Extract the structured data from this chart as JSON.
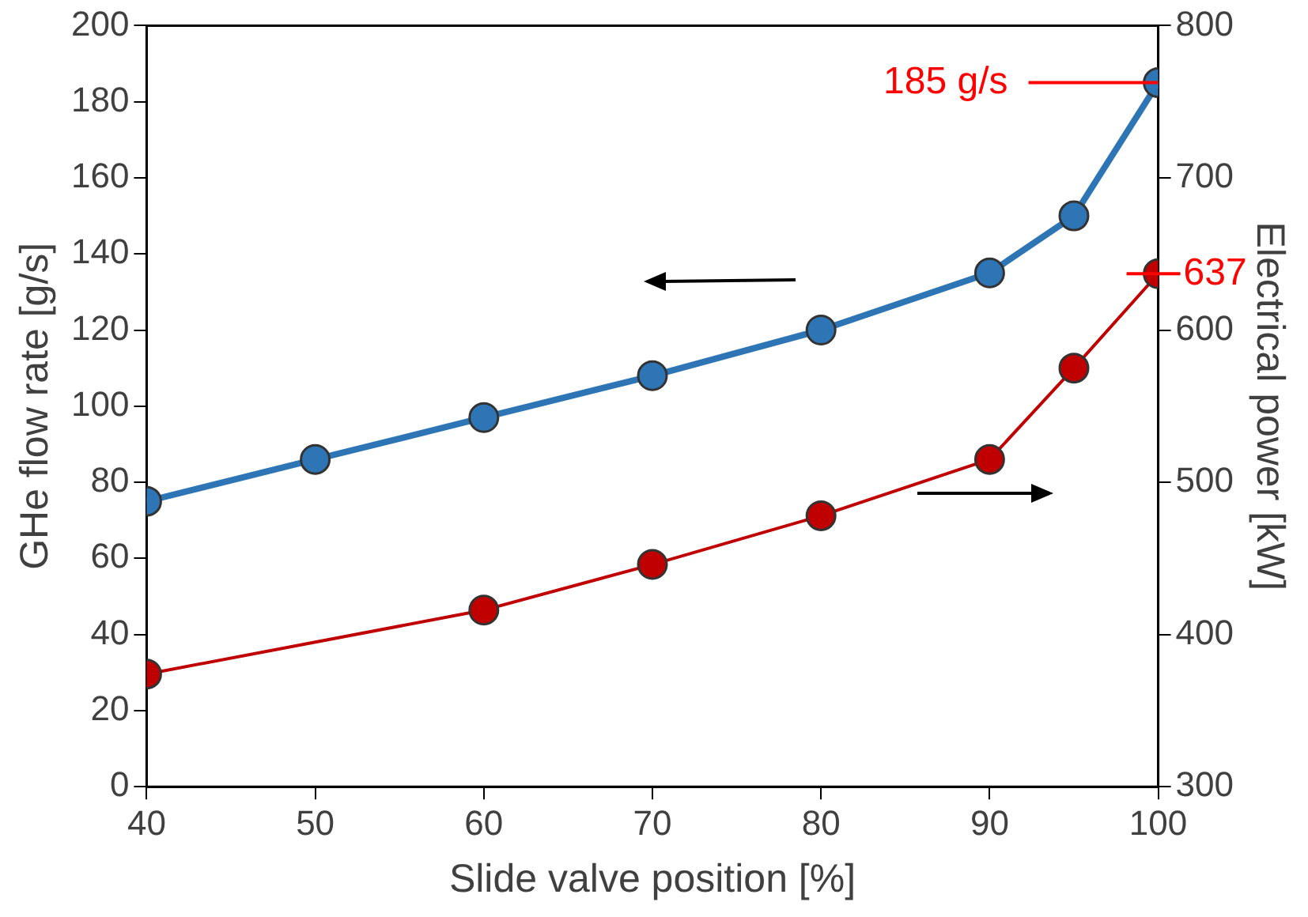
{
  "chart_data": {
    "type": "line",
    "xlabel": "Slide valve position [%]",
    "ylabel": "GHe flow rate [g/s]",
    "y2label": "Electrical power [kW]",
    "xlim": [
      40,
      100
    ],
    "xticks": [
      40,
      50,
      60,
      70,
      80,
      90,
      100
    ],
    "ylim": [
      0,
      200
    ],
    "yticks": [
      0,
      20,
      40,
      60,
      80,
      100,
      120,
      140,
      160,
      180,
      200
    ],
    "y2lim": [
      300,
      800
    ],
    "y2ticks": [
      300,
      400,
      500,
      600,
      700,
      800
    ],
    "grid": false,
    "legend": false,
    "marker": "circle",
    "line_style": "solid",
    "series": [
      {
        "color": "#2e75b6",
        "x": [
          40,
          50,
          60,
          70,
          80,
          90,
          95,
          100
        ],
        "values": [
          75,
          86,
          97,
          108,
          120,
          135,
          150,
          185
        ]
      },
      {
        "color": "#c00000",
        "axis": "y2",
        "x": [
          40,
          60,
          70,
          80,
          90,
          95,
          100
        ],
        "values": [
          374,
          416,
          446,
          478,
          515,
          575,
          637
        ]
      }
    ],
    "annotations": [
      {
        "text": "185 g/s",
        "x": 100,
        "y": 185
      },
      "637"
    ]
  }
}
